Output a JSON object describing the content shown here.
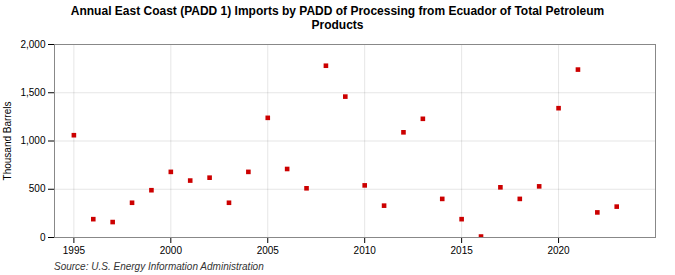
{
  "chart_data": {
    "type": "scatter",
    "title": "Annual East Coast (PADD 1) Imports by PADD of Processing from Ecuador of Total Petroleum\nProducts",
    "ylabel": "Thousand Barrels",
    "caption": "Source: U.S. Energy Information Administration",
    "x": [
      1995,
      1996,
      1997,
      1998,
      1999,
      2000,
      2001,
      2002,
      2003,
      2004,
      2005,
      2006,
      2007,
      2008,
      2009,
      2010,
      2011,
      2012,
      2013,
      2014,
      2015,
      2016,
      2017,
      2018,
      2019,
      2020,
      2021,
      2022,
      2023
    ],
    "values": [
      1060,
      190,
      160,
      360,
      490,
      680,
      590,
      620,
      360,
      680,
      1240,
      710,
      510,
      1780,
      1460,
      540,
      330,
      1090,
      1230,
      400,
      190,
      10,
      520,
      400,
      530,
      1340,
      1740,
      260,
      320
    ],
    "color": "#cc0000",
    "marker": "square",
    "xlim": [
      1994,
      2025
    ],
    "ylim": [
      0,
      2000
    ],
    "xticks": [
      1995,
      2000,
      2005,
      2010,
      2015,
      2020
    ],
    "yticks": [
      0,
      500,
      {
        "value": 1000,
        "label": "1,000"
      },
      {
        "value": 1500,
        "label": "1,500"
      },
      {
        "value": 2000,
        "label": "2,000"
      }
    ],
    "grid": true
  }
}
